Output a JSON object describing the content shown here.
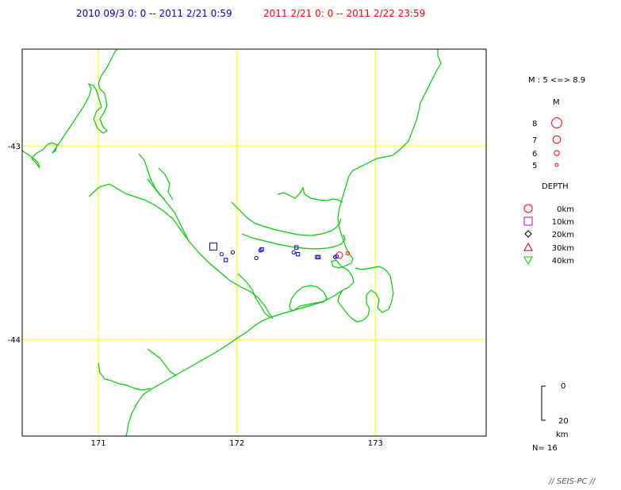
{
  "header": {
    "period_1": "2010 09/3 0: 0 -- 2011 2/21 0:59",
    "period_2": "2011  2/21  0: 0 --  2011 2/22 23:59",
    "period_1_color": "#0000cc",
    "period_2_color": "#ff0000"
  },
  "chart_data": {
    "type": "scatter",
    "map": true,
    "xlim": [
      170.45,
      173.8
    ],
    "ylim": [
      -44.5,
      -42.5
    ],
    "x_ticks": [
      171,
      172,
      173
    ],
    "x_tick_labels": [
      "171",
      "172",
      "173"
    ],
    "y_ticks": [
      -43,
      -44
    ],
    "y_tick_labels": [
      "-43",
      "-44"
    ],
    "grid": true,
    "colors": {
      "grid": "#ffff00",
      "coastline": "#00cc00",
      "frame": "#000000"
    },
    "series": [
      {
        "name": "2010 09/3 0: 0 -- 2011 2/21 0:59",
        "color": "#0000cc",
        "points": [
          {
            "lon": 171.83,
            "lat": -43.52,
            "mag": 5.6,
            "depth": 10
          },
          {
            "lon": 171.89,
            "lat": -43.56,
            "mag": 4.3,
            "depth": 0
          },
          {
            "lon": 171.92,
            "lat": -43.59,
            "mag": 4.3,
            "depth": 10
          },
          {
            "lon": 171.97,
            "lat": -43.55,
            "mag": 4.3,
            "depth": 0
          },
          {
            "lon": 172.14,
            "lat": -43.58,
            "mag": 4.3,
            "depth": 0
          },
          {
            "lon": 172.17,
            "lat": -43.54,
            "mag": 4.3,
            "depth": 0
          },
          {
            "lon": 172.18,
            "lat": -43.535,
            "mag": 4.3,
            "depth": 10
          },
          {
            "lon": 172.41,
            "lat": -43.55,
            "mag": 4.3,
            "depth": 0
          },
          {
            "lon": 172.44,
            "lat": -43.56,
            "mag": 4.3,
            "depth": 10
          },
          {
            "lon": 172.43,
            "lat": -43.525,
            "mag": 4.3,
            "depth": 10
          },
          {
            "lon": 172.58,
            "lat": -43.575,
            "mag": 4.3,
            "depth": 10
          },
          {
            "lon": 172.59,
            "lat": -43.575,
            "mag": 4.3,
            "depth": 10
          },
          {
            "lon": 172.72,
            "lat": -43.57,
            "mag": 4.3,
            "depth": 0
          },
          {
            "lon": 172.71,
            "lat": -43.575,
            "mag": 4.3,
            "depth": 0
          }
        ]
      },
      {
        "name": "2011  2/21  0: 0 --  2011 2/22 23:59",
        "color": "#ff0000",
        "points": [
          {
            "lon": 172.74,
            "lat": -43.565,
            "mag": 5.4,
            "depth": 0
          },
          {
            "lon": 172.8,
            "lat": -43.555,
            "mag": 4.3,
            "depth": 0
          }
        ]
      }
    ]
  },
  "legend": {
    "mag_range": "M : 5 <=> 8.9",
    "mag_title": "M",
    "mag_items": [
      {
        "label": "8",
        "mag": 8
      },
      {
        "label": "7",
        "mag": 7
      },
      {
        "label": "6",
        "mag": 6
      },
      {
        "label": "5",
        "mag": 5
      }
    ],
    "mag_color": "#ff0000",
    "depth_title": "DEPTH",
    "depth_items": [
      {
        "label": "0km",
        "symbol": "circle",
        "color": "#ff0000"
      },
      {
        "label": "10km",
        "symbol": "square",
        "color": "#cc00cc"
      },
      {
        "label": "20km",
        "symbol": "diamond",
        "color": "#000000"
      },
      {
        "label": "30km",
        "symbol": "triangle-up",
        "color": "#cc0000"
      },
      {
        "label": "40km",
        "symbol": "triangle-down",
        "color": "#00cc00"
      }
    ],
    "depth_scale_top": "0",
    "depth_scale_bottom": "20",
    "depth_scale_unit": "km",
    "count": "N= 16"
  },
  "footer": {
    "credit": "// SEIS-PC //"
  }
}
